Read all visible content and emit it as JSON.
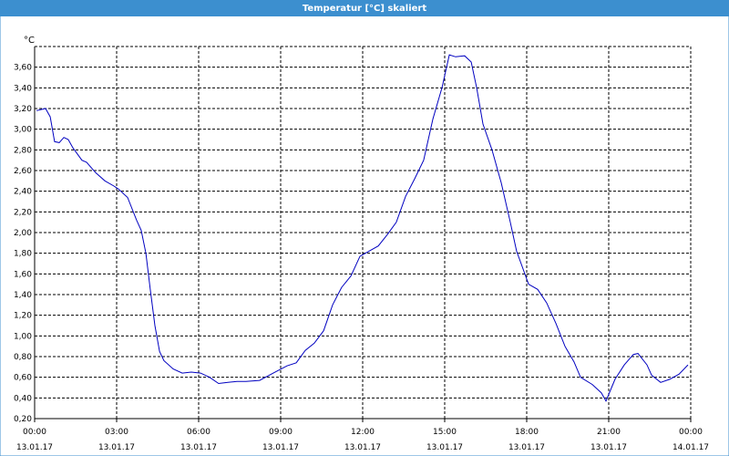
{
  "chart_data": {
    "type": "line",
    "title": "Temperatur [°C] skaliert",
    "y_unit": "°C",
    "x": [
      0.07,
      0.4,
      0.57,
      0.73,
      0.9,
      1.07,
      1.23,
      1.4,
      1.73,
      1.9,
      2.23,
      2.57,
      2.9,
      3.07,
      3.4,
      3.73,
      3.9,
      4.07,
      4.23,
      4.4,
      4.57,
      4.73,
      5.07,
      5.4,
      5.73,
      6.07,
      6.4,
      6.73,
      7.07,
      7.4,
      7.73,
      8.23,
      8.73,
      9.23,
      9.57,
      9.9,
      10.23,
      10.57,
      10.9,
      11.23,
      11.57,
      11.9,
      12.23,
      12.57,
      12.9,
      13.23,
      13.57,
      13.9,
      14.23,
      14.57,
      14.9,
      15.17,
      15.4,
      15.73,
      15.97,
      16.17,
      16.4,
      16.73,
      17.07,
      17.4,
      17.63,
      18.07,
      18.4,
      18.73,
      19.07,
      19.4,
      19.73,
      19.97,
      20.4,
      20.73,
      20.9,
      21.23,
      21.57,
      21.9,
      22.07,
      22.4,
      22.57,
      22.9,
      23.23,
      23.57,
      23.9
    ],
    "series": [
      {
        "name": "Temperatur",
        "color": "#0000c0",
        "values": [
          3.18,
          3.2,
          3.12,
          2.88,
          2.87,
          2.92,
          2.9,
          2.82,
          2.7,
          2.68,
          2.58,
          2.5,
          2.45,
          2.42,
          2.34,
          2.12,
          2.02,
          1.8,
          1.45,
          1.1,
          0.85,
          0.76,
          0.68,
          0.64,
          0.65,
          0.64,
          0.6,
          0.54,
          0.55,
          0.56,
          0.56,
          0.57,
          0.64,
          0.71,
          0.74,
          0.86,
          0.93,
          1.05,
          1.3,
          1.47,
          1.58,
          1.77,
          1.82,
          1.87,
          1.98,
          2.1,
          2.35,
          2.52,
          2.7,
          3.1,
          3.4,
          3.72,
          3.7,
          3.71,
          3.65,
          3.4,
          3.05,
          2.8,
          2.48,
          2.1,
          1.82,
          1.5,
          1.45,
          1.32,
          1.12,
          0.9,
          0.75,
          0.6,
          0.53,
          0.45,
          0.37,
          0.58,
          0.72,
          0.82,
          0.83,
          0.72,
          0.62,
          0.55,
          0.58,
          0.63,
          0.72
        ]
      }
    ],
    "xlim": [
      0,
      24
    ],
    "xticks": [
      {
        "value": 0,
        "label": "00:00",
        "sublabel": "13.01.17"
      },
      {
        "value": 3,
        "label": "03:00",
        "sublabel": "13.01.17"
      },
      {
        "value": 6,
        "label": "06:00",
        "sublabel": "13.01.17"
      },
      {
        "value": 9,
        "label": "09:00",
        "sublabel": "13.01.17"
      },
      {
        "value": 12,
        "label": "12:00",
        "sublabel": "13.01.17"
      },
      {
        "value": 15,
        "label": "15:00",
        "sublabel": "13.01.17"
      },
      {
        "value": 18,
        "label": "18:00",
        "sublabel": "13.01.17"
      },
      {
        "value": 21,
        "label": "21:00",
        "sublabel": "13.01.17"
      },
      {
        "value": 24,
        "label": "00:00",
        "sublabel": "14.01.17"
      }
    ],
    "ylim": [
      0.2,
      3.8
    ],
    "yticks": [
      {
        "value": 0.2,
        "label": "0,20"
      },
      {
        "value": 0.4,
        "label": "0,40"
      },
      {
        "value": 0.6,
        "label": "0,60"
      },
      {
        "value": 0.8,
        "label": "0,80"
      },
      {
        "value": 1.0,
        "label": "1,00"
      },
      {
        "value": 1.2,
        "label": "1,20"
      },
      {
        "value": 1.4,
        "label": "1,40"
      },
      {
        "value": 1.6,
        "label": "1,60"
      },
      {
        "value": 1.8,
        "label": "1,80"
      },
      {
        "value": 2.0,
        "label": "2,00"
      },
      {
        "value": 2.2,
        "label": "2,20"
      },
      {
        "value": 2.4,
        "label": "2,40"
      },
      {
        "value": 2.6,
        "label": "2,60"
      },
      {
        "value": 2.8,
        "label": "2,80"
      },
      {
        "value": 3.0,
        "label": "3,00"
      },
      {
        "value": 3.2,
        "label": "3,20"
      },
      {
        "value": 3.4,
        "label": "3,40"
      },
      {
        "value": 3.6,
        "label": "3,60"
      }
    ],
    "grid": true
  }
}
